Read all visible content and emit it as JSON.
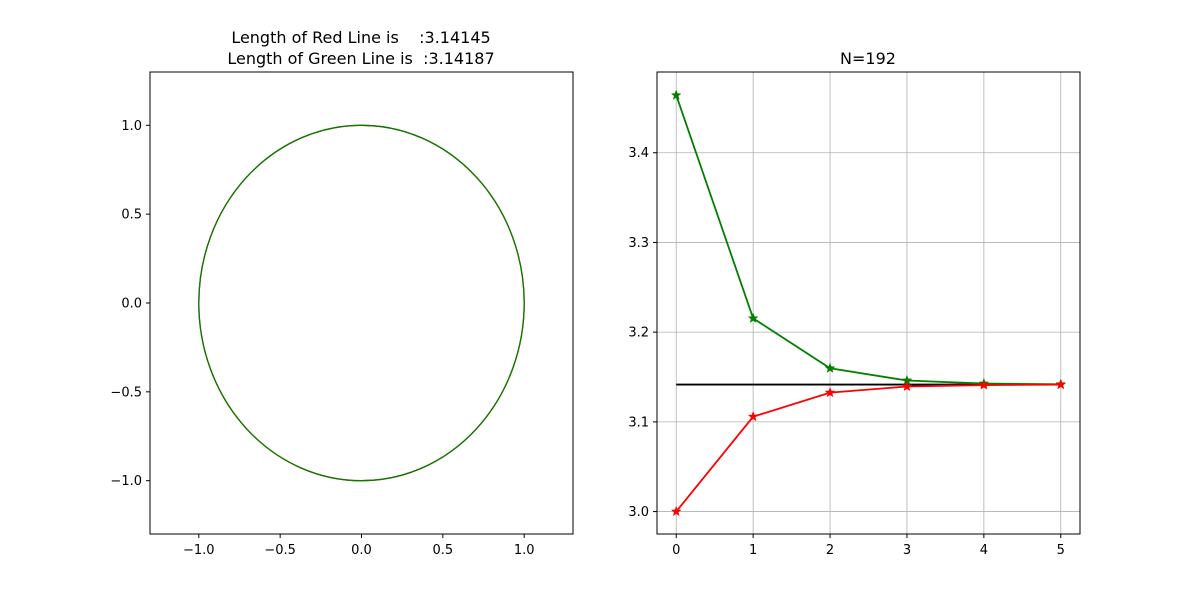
{
  "chart_data": [
    {
      "type": "line",
      "title_lines": [
        "Length of Red Line is    :3.14145",
        "Length of Green Line is  :3.14187"
      ],
      "xlim": [
        -1.3,
        1.3
      ],
      "ylim": [
        -1.3,
        1.3
      ],
      "xticks": [
        -1.0,
        -0.5,
        0.0,
        0.5,
        1.0
      ],
      "xtick_labels": [
        "−1.0",
        "−0.5",
        "0.0",
        "0.5",
        "1.0"
      ],
      "yticks": [
        -1.0,
        -0.5,
        0.0,
        0.5,
        1.0
      ],
      "ytick_labels": [
        "−1.0",
        "−0.5",
        "0.0",
        "0.5",
        "1.0"
      ],
      "grid": false,
      "series": [
        {
          "shape": "circle",
          "center": [
            0,
            0
          ],
          "radius": 1.0,
          "color": "#ff0000"
        },
        {
          "shape": "circle",
          "center": [
            0,
            0
          ],
          "radius": 1.0,
          "color": "#008000"
        }
      ]
    },
    {
      "type": "line",
      "title": "N=192",
      "xlim": [
        -0.25,
        5.25
      ],
      "ylim": [
        2.975,
        3.49
      ],
      "xticks": [
        0,
        1,
        2,
        3,
        4,
        5
      ],
      "xtick_labels": [
        "0",
        "1",
        "2",
        "3",
        "4",
        "5"
      ],
      "yticks": [
        3.0,
        3.1,
        3.2,
        3.3,
        3.4
      ],
      "ytick_labels": [
        "3.0",
        "3.1",
        "3.2",
        "3.3",
        "3.4"
      ],
      "grid": true,
      "reference_line": {
        "y": 3.14159,
        "x": [
          0,
          5
        ],
        "color": "#000000"
      },
      "series": [
        {
          "x": [
            0,
            1,
            2,
            3,
            4,
            5
          ],
          "values": [
            3.4641,
            3.2154,
            3.1597,
            3.1461,
            3.1427,
            3.1419
          ],
          "color": "#008000",
          "marker": "star"
        },
        {
          "x": [
            0,
            1,
            2,
            3,
            4,
            5
          ],
          "values": [
            3.0,
            3.1058,
            3.1326,
            3.1394,
            3.141,
            3.1415
          ],
          "color": "#ff0000",
          "marker": "star"
        }
      ]
    }
  ]
}
